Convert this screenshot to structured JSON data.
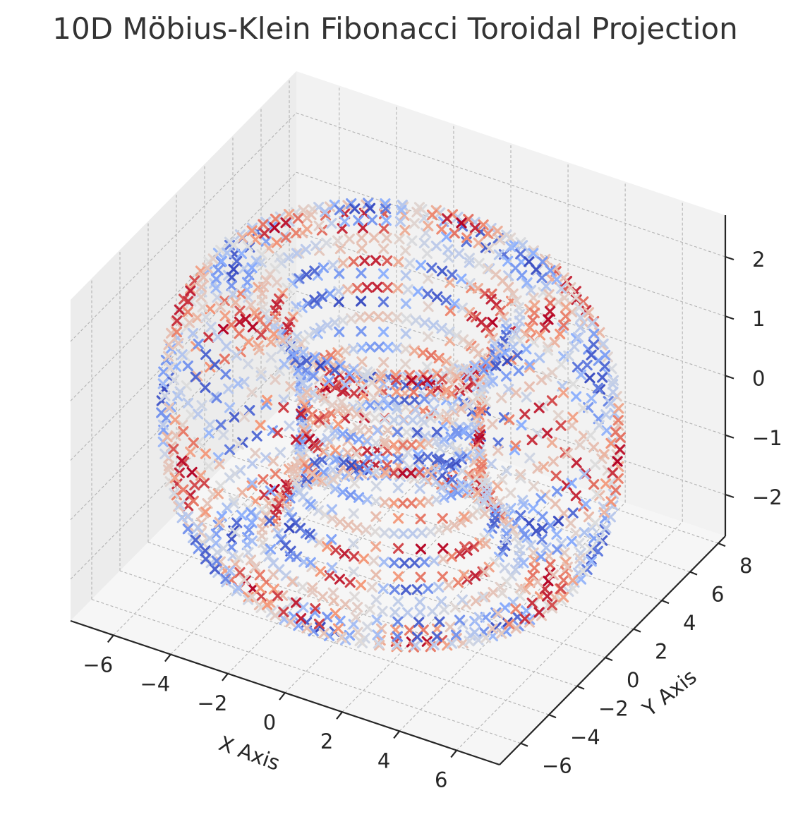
{
  "chart_data": {
    "type": "scatter",
    "projection": "3d",
    "title": "10D Möbius-Klein Fibonacci Toroidal Projection",
    "xlabel": "X Axis",
    "ylabel": "Y Axis",
    "zlabel": "",
    "xlim": [
      -7.5,
      7.5
    ],
    "ylim": [
      -7.5,
      8.5
    ],
    "zlim": [
      -2.7,
      2.7
    ],
    "xticks": [
      -6,
      -4,
      -2,
      0,
      2,
      4,
      6
    ],
    "yticks": [
      -6,
      -4,
      -2,
      0,
      2,
      4,
      6,
      8
    ],
    "zticks": [
      -2,
      -1,
      0,
      1,
      2
    ],
    "xtick_labels": [
      "−6",
      "−4",
      "−2",
      "0",
      "2",
      "4",
      "6"
    ],
    "ytick_labels": [
      "−6",
      "−4",
      "−2",
      "0",
      "2",
      "4",
      "6",
      "8"
    ],
    "ztick_labels": [
      "−2",
      "−1",
      "0",
      "1",
      "2"
    ],
    "marker": "x",
    "colormap": "coolwarm",
    "colormap_stops": [
      "#3b4cc0",
      "#8db0fe",
      "#dddddd",
      "#f49a7b",
      "#b40426"
    ],
    "grid": true,
    "pane_colors": {
      "left": "#ececec",
      "back": "#f2f2f2",
      "floor": "#f6f6f6"
    },
    "surface": {
      "kind": "torus",
      "major_radius": 5,
      "minor_radius": 2.2,
      "u_samples": 64,
      "v_samples": 28,
      "color_value": "sin(5u)·cos(4v)",
      "color_range": [
        -1,
        1
      ]
    }
  }
}
